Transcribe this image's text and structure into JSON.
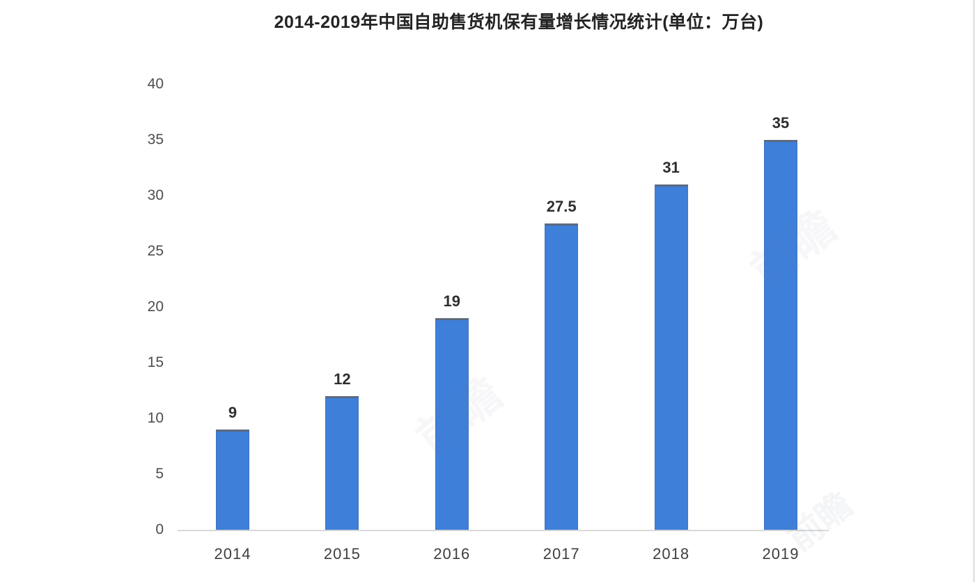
{
  "chart_data": {
    "type": "bar",
    "title": "2014-2019年中国自助售货机保有量增长情况统计(单位：万台)",
    "categories": [
      "2014",
      "2015",
      "2016",
      "2017",
      "2018",
      "2019"
    ],
    "values": [
      9,
      12,
      19,
      27.5,
      31,
      35
    ],
    "value_labels": [
      "9",
      "12",
      "19",
      "27.5",
      "31",
      "35"
    ],
    "xlabel": "",
    "ylabel": "",
    "ylim": [
      0,
      40
    ],
    "yticks": [
      0,
      5,
      10,
      15,
      20,
      25,
      30,
      35,
      40
    ],
    "grid": false,
    "legend": "none",
    "bar_color": "#3e7fda",
    "bar_top_edge_color": "#5d6a7c",
    "axis_line_color": "#d8d8d8",
    "tick_label_color": "#4d4d4d",
    "value_label_color": "#2e2e2e",
    "title_color": "#232323"
  },
  "watermark": {
    "text": "前瞻"
  }
}
